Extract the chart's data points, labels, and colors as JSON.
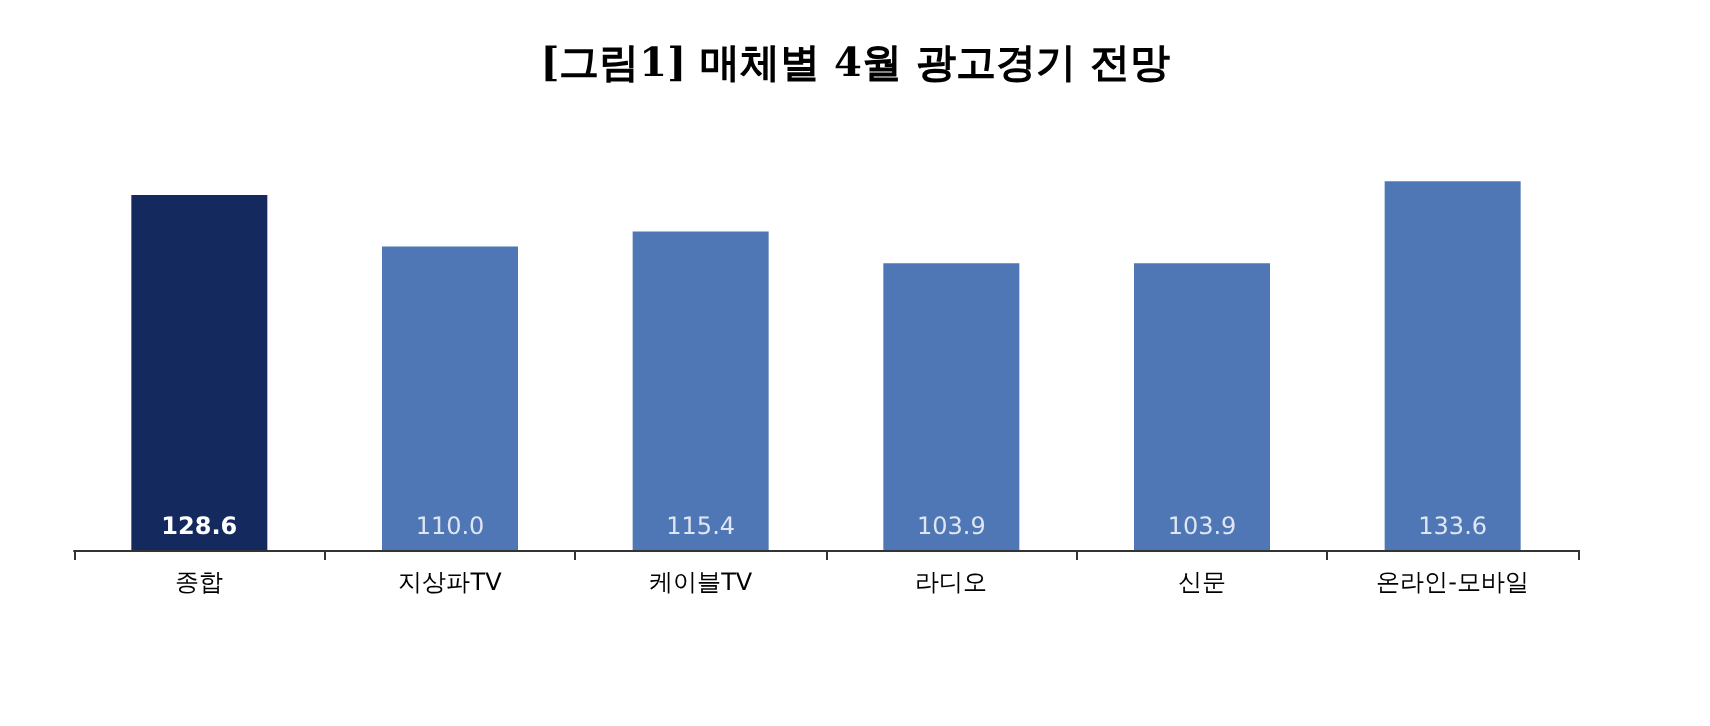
{
  "chart_data": {
    "type": "bar",
    "title": "[그림1] 매체별 4월 광고경기 전망",
    "categories": [
      "종합",
      "지상파TV",
      "케이블TV",
      "라디오",
      "신문",
      "온라인-모바일"
    ],
    "values": [
      128.6,
      110.0,
      115.4,
      103.9,
      103.9,
      133.6
    ],
    "value_labels": [
      "128.6",
      "110.0",
      "115.4",
      "103.9",
      "103.9",
      "133.6"
    ],
    "colors": [
      "#142a5e",
      "#4f77b5",
      "#4f77b5",
      "#4f77b5",
      "#4f77b5",
      "#4f77b5"
    ]
  }
}
